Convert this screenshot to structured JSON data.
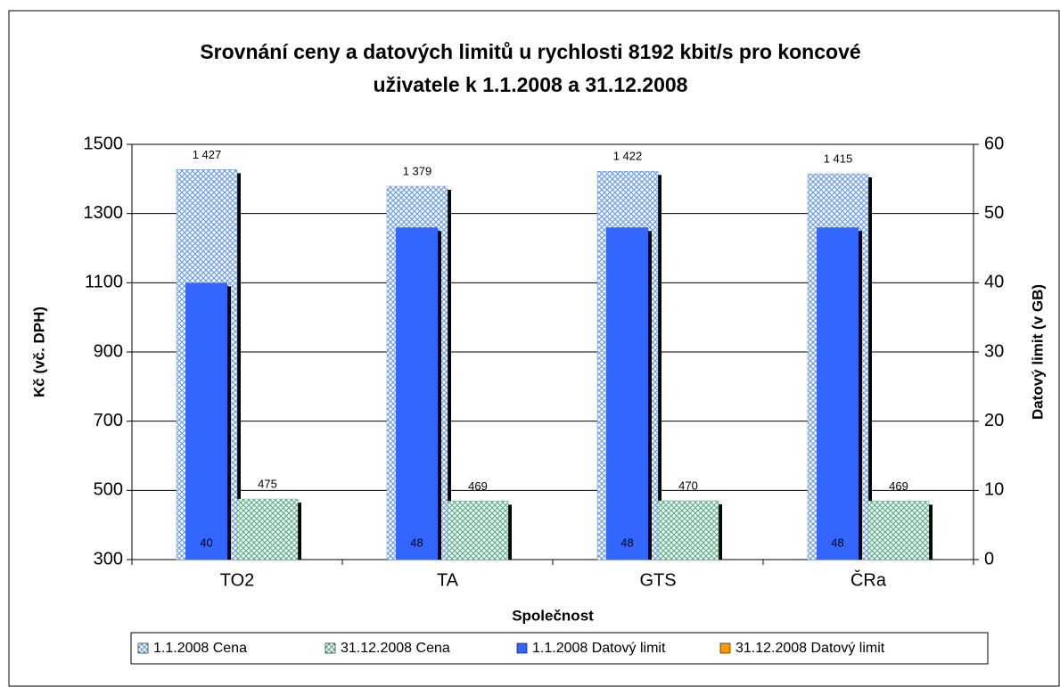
{
  "chart_data": {
    "type": "bar",
    "title": "Srovnání ceny a datových limitů u rychlosti 8192 kbit/s pro koncové uživatele k 1.1.2008 a 31.12.2008",
    "xlabel": "Společnost",
    "ylabel": "Kč (vč. DPH)",
    "y2label": "Datový limit (v GB)",
    "categories": [
      "TO2",
      "TA",
      "GTS",
      "ČRa"
    ],
    "series": [
      {
        "name": "1.1.2008 Cena",
        "color": "#6f9fe6",
        "pattern": "crosshatch",
        "values": [
          1427,
          1379,
          1422,
          1415
        ],
        "value_labels": [
          "1 427",
          "1 379",
          "1 422",
          "1 415"
        ]
      },
      {
        "name": "31.12.2008 Cena",
        "color": "#5fb38a",
        "pattern": "crosshatch",
        "values": [
          475,
          469,
          470,
          469
        ]
      },
      {
        "name": "1.1.2008 Datový limit",
        "color": "#3366ff",
        "axis": "y2",
        "values": [
          40,
          48,
          48,
          48
        ]
      },
      {
        "name": "31.12.2008 Datový limit",
        "color": "#ff9900",
        "axis": "y2",
        "values": [
          null,
          null,
          null,
          null
        ]
      }
    ],
    "ylim": [
      300,
      1500
    ],
    "yticks": [
      300,
      500,
      700,
      900,
      1100,
      1300,
      1500
    ],
    "y2lim": [
      0,
      60
    ],
    "y2ticks": [
      0,
      10,
      20,
      30,
      40,
      50,
      60
    ],
    "grid": true
  }
}
